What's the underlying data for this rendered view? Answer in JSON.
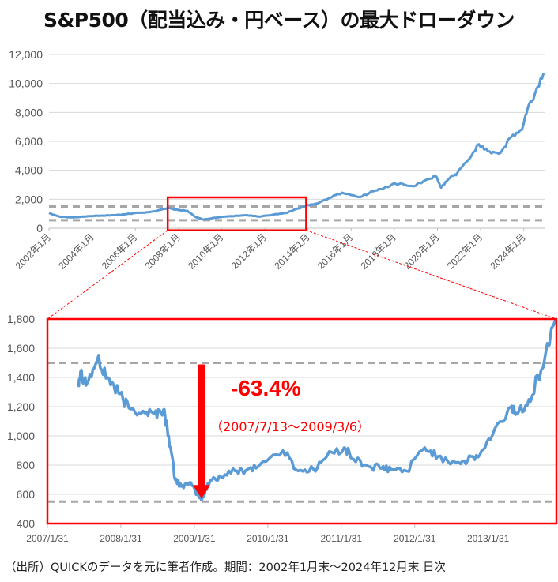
{
  "title": "S&P500（配当込み・円ベース）の最大ドローダウン",
  "source_note": "（出所）QUICKのデータを元に筆者作成。期間：2002年1月末〜2024年12月末 日次",
  "colors": {
    "line": "#5B9BD5",
    "highlight": "#FF0000",
    "reference": "#A6A6A6",
    "grid": "#D9D9D9"
  },
  "chart_data": [
    {
      "type": "line",
      "title": "",
      "xlabel": "",
      "ylabel": "",
      "ylim": [
        0,
        12000
      ],
      "yticks": [
        "0",
        "2,000",
        "4,000",
        "6,000",
        "8,000",
        "10,000",
        "12,000"
      ],
      "xticks": [
        "2002年1月",
        "2004年1月",
        "2006年1月",
        "2008年1月",
        "2010年1月",
        "2012年1月",
        "2014年1月",
        "2016年1月",
        "2018年1月",
        "2020年1月",
        "2022年1月",
        "2024年1月"
      ],
      "grid": true,
      "reference_lines": [
        1500,
        550
      ],
      "highlight_box": {
        "x_from": "2007-07",
        "x_to": "2013-12",
        "y_from": 400,
        "y_to": 1800
      },
      "series": [
        {
          "x": [
            "2002-01",
            "2002-07",
            "2003-03",
            "2003-10",
            "2004-06",
            "2005-01",
            "2005-07",
            "2006-01",
            "2006-07",
            "2007-01",
            "2007-07",
            "2008-01",
            "2008-06",
            "2008-10",
            "2009-03",
            "2009-10",
            "2010-06",
            "2011-03",
            "2011-10",
            "2012-06",
            "2013-01",
            "2013-06",
            "2014-01",
            "2014-06",
            "2015-01",
            "2015-08",
            "2016-06",
            "2017-01",
            "2017-06",
            "2018-01",
            "2018-12",
            "2019-06",
            "2019-12",
            "2020-03",
            "2020-08",
            "2020-12",
            "2021-06",
            "2021-12",
            "2022-06",
            "2022-12",
            "2023-06",
            "2023-12",
            "2024-03",
            "2024-07",
            "2024-12"
          ],
          "y": [
            1050,
            800,
            750,
            820,
            870,
            900,
            950,
            1050,
            1100,
            1200,
            1400,
            1250,
            1200,
            800,
            600,
            730,
            830,
            900,
            800,
            950,
            1050,
            1300,
            1600,
            1700,
            2100,
            2450,
            2150,
            2550,
            2700,
            3100,
            2900,
            3300,
            3600,
            2800,
            3500,
            3800,
            4700,
            5800,
            5300,
            5200,
            6300,
            6800,
            8200,
            9200,
            10700
          ]
        }
      ]
    },
    {
      "type": "line",
      "title": "",
      "xlabel": "",
      "ylabel": "",
      "ylim": [
        400,
        1800
      ],
      "yticks": [
        "400",
        "600",
        "800",
        "1,000",
        "1,200",
        "1,400",
        "1,600",
        "1,800"
      ],
      "xticks": [
        "2007/1/31",
        "2008/1/31",
        "2009/1/31",
        "2010/1/31",
        "2011/1/31",
        "2012/1/31",
        "2013/1/31"
      ],
      "grid": true,
      "reference_lines": [
        1500,
        550
      ],
      "annotations": {
        "drawdown_label": "-63.4%",
        "period_label": "（2007/7/13〜2009/3/6）"
      },
      "series": [
        {
          "x": [
            "2007-07-01",
            "2007-07-13",
            "2007-08-15",
            "2007-10-05",
            "2007-11-25",
            "2008-01-20",
            "2008-03-10",
            "2008-05-20",
            "2008-07-15",
            "2008-08-30",
            "2008-09-25",
            "2008-10-27",
            "2008-12-01",
            "2009-01-20",
            "2009-03-06",
            "2009-04-20",
            "2009-06-10",
            "2009-08-20",
            "2009-10-20",
            "2009-12-20",
            "2010-04-15",
            "2010-06-30",
            "2010-09-15",
            "2010-11-20",
            "2011-02-15",
            "2011-04-01",
            "2011-06-15",
            "2011-08-10",
            "2011-10-05",
            "2011-12-20",
            "2012-03-20",
            "2012-05-25",
            "2012-08-20",
            "2012-10-20",
            "2012-12-20",
            "2013-02-20",
            "2013-05-22",
            "2013-06-25",
            "2013-08-20",
            "2013-10-20",
            "2013-12-31"
          ],
          "y": [
            1370,
            1440,
            1360,
            1520,
            1400,
            1290,
            1190,
            1170,
            1150,
            1180,
            1000,
            700,
            660,
            660,
            560,
            700,
            720,
            760,
            770,
            800,
            900,
            760,
            770,
            860,
            920,
            840,
            790,
            780,
            770,
            760,
            920,
            860,
            820,
            830,
            870,
            1000,
            1200,
            1150,
            1250,
            1450,
            1800
          ]
        }
      ]
    }
  ]
}
